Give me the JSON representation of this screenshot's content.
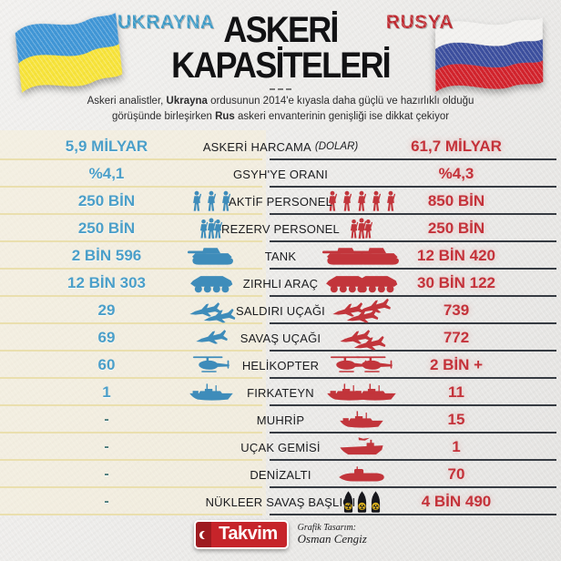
{
  "header": {
    "left_country": "UKRAYNA",
    "right_country": "RUSYA",
    "title_line1": "ASKERİ",
    "title_line2": "KAPASİTELERİ"
  },
  "subtitle": {
    "part1": "Askeri analistler, ",
    "bold1": "Ukrayna",
    "part2": " ordusunun 2014'e kıyasla daha güçlü ve hazırlıklı olduğu görüşünde birleşirken ",
    "bold2": "Rus",
    "part3": " askeri envanterinin genişliği ise dikkat çekiyor"
  },
  "colors": {
    "ukraine_blue": "#4b9fc9",
    "russia_red": "#c4323a",
    "cream_line": "#eadfae",
    "dark_line": "#363b42",
    "warhead_yellow": "#f2c21c"
  },
  "rows": [
    {
      "label": "ASKERİ HARCAMA",
      "label_note": "(DOLAR)",
      "left": "5,9 MİLYAR",
      "right": "61,7 MİLYAR",
      "icon": "",
      "left_count": 0,
      "right_count": 0
    },
    {
      "label": "GSYH'YE ORANI",
      "label_note": "",
      "left": "%4,1",
      "right": "%4,3",
      "icon": "",
      "left_count": 0,
      "right_count": 0
    },
    {
      "label": "AKTİF PERSONEL",
      "label_note": "",
      "left": "250 BİN",
      "right": "850 BİN",
      "icon": "soldier",
      "left_count": 3,
      "right_count": 5
    },
    {
      "label": "REZERV PERSONEL",
      "label_note": "",
      "left": "250 BİN",
      "right": "250 BİN",
      "icon": "soldier-group",
      "left_count": 1,
      "right_count": 1
    },
    {
      "label": "TANK",
      "label_note": "",
      "left": "2 BİN 596",
      "right": "12 BİN 420",
      "icon": "tank",
      "left_count": 1,
      "right_count": 2
    },
    {
      "label": "ZIRHLI ARAÇ",
      "label_note": "",
      "left": "12 BİN 303",
      "right": "30 BİN 122",
      "icon": "apc",
      "left_count": 1,
      "right_count": 2
    },
    {
      "label": "SALDIRI UÇAĞI",
      "label_note": "",
      "left": "29",
      "right": "739",
      "icon": "jet",
      "left_count": 2,
      "right_count": 3
    },
    {
      "label": "SAVAŞ UÇAĞI",
      "label_note": "",
      "left": "69",
      "right": "772",
      "icon": "jet",
      "left_count": 1,
      "right_count": 2
    },
    {
      "label": "HELİKOPTER",
      "label_note": "",
      "left": "60",
      "right": "2 BİN +",
      "icon": "helicopter",
      "left_count": 1,
      "right_count": 2
    },
    {
      "label": "FIRKATEYN",
      "label_note": "",
      "left": "1",
      "right": "11",
      "icon": "ship",
      "left_count": 1,
      "right_count": 2
    },
    {
      "label": "MUHRİP",
      "label_note": "",
      "left": "-",
      "right": "15",
      "icon": "ship",
      "left_count": 0,
      "right_count": 1
    },
    {
      "label": "UÇAK GEMİSİ",
      "label_note": "",
      "left": "-",
      "right": "1",
      "icon": "carrier",
      "left_count": 0,
      "right_count": 1
    },
    {
      "label": "DENİZALTI",
      "label_note": "",
      "left": "-",
      "right": "70",
      "icon": "submarine",
      "left_count": 0,
      "right_count": 1
    },
    {
      "label": "NÜKLEER SAVAŞ BAŞLIĞI",
      "label_note": "",
      "left": "-",
      "right": "4 BİN 490",
      "icon": "warhead",
      "left_count": 0,
      "right_count": 3
    }
  ],
  "chart_data": {
    "type": "table",
    "title": "ASKERİ KAPASİTELERİ",
    "categories": [
      "ASKERİ HARCAMA (DOLAR)",
      "GSYH'YE ORANI",
      "AKTİF PERSONEL",
      "REZERV PERSONEL",
      "TANK",
      "ZIRHLI ARAÇ",
      "SALDIRI UÇAĞI",
      "SAVAŞ UÇAĞI",
      "HELİKOPTER",
      "FIRKATEYN",
      "MUHRİP",
      "UÇAK GEMİSİ",
      "DENİZALTI",
      "NÜKLEER SAVAŞ BAŞLIĞI"
    ],
    "series": [
      {
        "name": "UKRAYNA",
        "values": [
          "5,9 MİLYAR",
          "%4,1",
          "250 BİN",
          "250 BİN",
          "2 BİN 596",
          "12 BİN 303",
          "29",
          "69",
          "60",
          "1",
          "-",
          "-",
          "-",
          "-"
        ]
      },
      {
        "name": "RUSYA",
        "values": [
          "61,7 MİLYAR",
          "%4,3",
          "850 BİN",
          "250 BİN",
          "12 BİN 420",
          "30 BİN 122",
          "739",
          "772",
          "2 BİN +",
          "11",
          "15",
          "1",
          "70",
          "4 BİN 490"
        ]
      }
    ]
  },
  "footer": {
    "logo_text": "Takvim",
    "credit_label": "Grafik Tasarım:",
    "credit_name": "Osman Cengiz"
  }
}
